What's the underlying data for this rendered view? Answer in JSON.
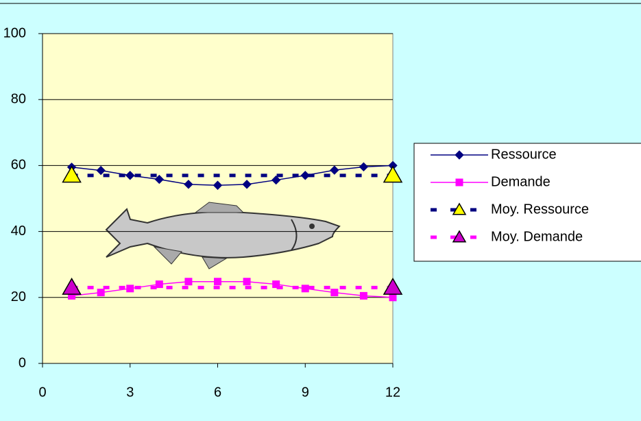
{
  "chart_data": {
    "type": "line",
    "xlim": [
      0,
      12
    ],
    "xticks": [
      0,
      3,
      6,
      9,
      12
    ],
    "ylim": [
      0,
      100
    ],
    "yticks": [
      0,
      20,
      40,
      60,
      80,
      100
    ],
    "grid": true,
    "legend": "right",
    "series": [
      {
        "name": "Ressource",
        "color": "#000080",
        "marker": "diamond",
        "marker_color": "#000080",
        "x": [
          1,
          2,
          3,
          4,
          5,
          6,
          7,
          8,
          9,
          10,
          11,
          12
        ],
        "values": [
          59.5,
          58.5,
          57,
          55.8,
          54.3,
          54,
          54.3,
          55.6,
          57,
          58.6,
          59.6,
          60
        ]
      },
      {
        "name": "Demande",
        "color": "#ff00ff",
        "marker": "square",
        "marker_color": "#ff00ff",
        "x": [
          1,
          2,
          3,
          4,
          5,
          6,
          7,
          8,
          9,
          10,
          11,
          12
        ],
        "values": [
          20.5,
          21.5,
          22.7,
          24,
          24.8,
          24.8,
          24.8,
          24,
          22.7,
          21.5,
          20.5,
          20
        ]
      },
      {
        "name": "Moy. Ressource",
        "color": "#000080",
        "dashed": true,
        "marker": "triangle",
        "marker_color": "#ffff00",
        "x": [
          1,
          12
        ],
        "values": [
          57,
          57
        ]
      },
      {
        "name": "Moy. Demande",
        "color": "#ff00ff",
        "dashed": true,
        "marker": "triangle",
        "marker_color": "#cc00cc",
        "x": [
          1,
          12
        ],
        "values": [
          23,
          23
        ]
      }
    ]
  }
}
